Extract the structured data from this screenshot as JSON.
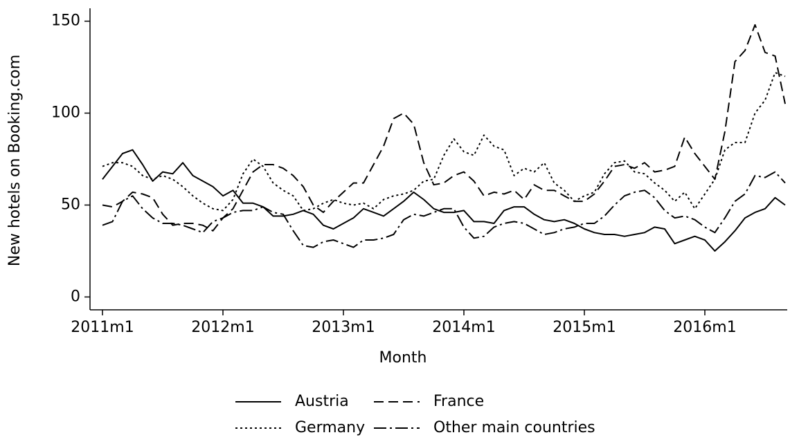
{
  "chart_data": {
    "type": "line",
    "ylabel": "New hotels on Booking.com",
    "xlabel": "Month",
    "x": [
      "2011m1",
      "2011m2",
      "2011m3",
      "2011m4",
      "2011m5",
      "2011m6",
      "2011m7",
      "2011m8",
      "2011m9",
      "2011m10",
      "2011m11",
      "2011m12",
      "2012m1",
      "2012m2",
      "2012m3",
      "2012m4",
      "2012m5",
      "2012m6",
      "2012m7",
      "2012m8",
      "2012m9",
      "2012m10",
      "2012m11",
      "2012m12",
      "2013m1",
      "2013m2",
      "2013m3",
      "2013m4",
      "2013m5",
      "2013m6",
      "2013m7",
      "2013m8",
      "2013m9",
      "2013m10",
      "2013m11",
      "2013m12",
      "2014m1",
      "2014m2",
      "2014m3",
      "2014m4",
      "2014m5",
      "2014m6",
      "2014m7",
      "2014m8",
      "2014m9",
      "2014m10",
      "2014m11",
      "2014m12",
      "2015m1",
      "2015m2",
      "2015m3",
      "2015m4",
      "2015m5",
      "2015m6",
      "2015m7",
      "2015m8",
      "2015m9",
      "2015m10",
      "2015m11",
      "2015m12",
      "2016m1",
      "2016m2",
      "2016m3",
      "2016m4",
      "2016m5",
      "2016m6",
      "2016m7",
      "2016m8",
      "2016m9"
    ],
    "xticks": [
      "2011m1",
      "2012m1",
      "2013m1",
      "2014m1",
      "2015m1",
      "2016m1"
    ],
    "ylim": [
      -7,
      157
    ],
    "yticks": [
      0,
      50,
      100,
      150
    ],
    "grid": false,
    "legend": "bottom",
    "series": [
      {
        "name": "Austria",
        "color": "#000000",
        "dash": "solid",
        "values": [
          64,
          71,
          78,
          80,
          72,
          63,
          68,
          67,
          73,
          66,
          63,
          60,
          55,
          58,
          51,
          51,
          49,
          44,
          44,
          45,
          47,
          45,
          39,
          37,
          40,
          43,
          48,
          46,
          44,
          48,
          52,
          57,
          53,
          48,
          46,
          46,
          47,
          41,
          41,
          40,
          47,
          49,
          49,
          45,
          42,
          41,
          42,
          40,
          37,
          35,
          34,
          34,
          33,
          34,
          35,
          38,
          37,
          29,
          31,
          33,
          31,
          25,
          30,
          36,
          43,
          46,
          48,
          54,
          50
        ]
      },
      {
        "name": "France",
        "color": "#000000",
        "dash": "dashed",
        "values": [
          50,
          49,
          52,
          57,
          56,
          54,
          45,
          39,
          40,
          40,
          39,
          36,
          43,
          48,
          58,
          68,
          72,
          72,
          70,
          66,
          60,
          50,
          46,
          52,
          57,
          62,
          62,
          72,
          82,
          97,
          100,
          94,
          73,
          61,
          62,
          66,
          68,
          63,
          55,
          57,
          56,
          58,
          53,
          61,
          58,
          58,
          55,
          52,
          52,
          56,
          63,
          71,
          72,
          70,
          73,
          68,
          69,
          71,
          87,
          78,
          71,
          64,
          90,
          128,
          134,
          148,
          133,
          131,
          105
        ]
      },
      {
        "name": "Germany",
        "color": "#000000",
        "dash": "dotted",
        "values": [
          71,
          73,
          73,
          71,
          66,
          64,
          66,
          64,
          60,
          55,
          51,
          48,
          47,
          53,
          67,
          75,
          71,
          62,
          58,
          55,
          47,
          48,
          51,
          53,
          51,
          50,
          51,
          48,
          53,
          55,
          56,
          58,
          63,
          64,
          77,
          86,
          79,
          77,
          88,
          82,
          80,
          66,
          70,
          68,
          73,
          62,
          58,
          52,
          55,
          57,
          67,
          73,
          74,
          68,
          67,
          62,
          58,
          52,
          57,
          48,
          56,
          64,
          80,
          84,
          84,
          100,
          107,
          122,
          120
        ]
      },
      {
        "name": "Other main countries",
        "color": "#000000",
        "dash": "dashdot",
        "values": [
          39,
          41,
          52,
          55,
          48,
          43,
          40,
          40,
          39,
          37,
          35,
          41,
          43,
          46,
          47,
          47,
          49,
          46,
          45,
          36,
          28,
          27,
          30,
          31,
          29,
          27,
          31,
          31,
          32,
          34,
          42,
          45,
          44,
          46,
          48,
          48,
          38,
          32,
          33,
          38,
          40,
          41,
          40,
          37,
          34,
          35,
          37,
          38,
          40,
          40,
          44,
          50,
          55,
          57,
          58,
          54,
          47,
          43,
          44,
          42,
          38,
          35,
          43,
          52,
          56,
          66,
          65,
          68,
          62
        ]
      }
    ]
  }
}
